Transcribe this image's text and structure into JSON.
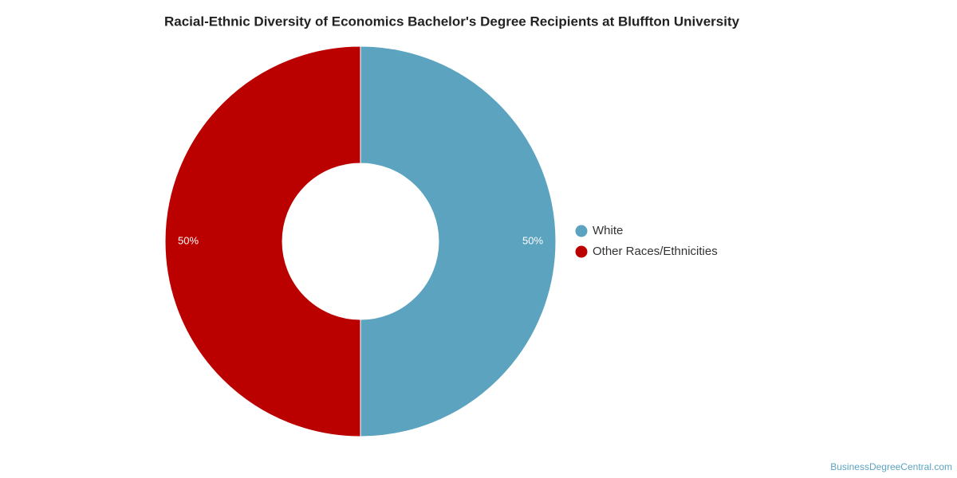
{
  "chart_data": {
    "type": "donut",
    "title": "Racial-Ethnic Diversity of Economics Bachelor's Degree Recipients at Bluffton University",
    "categories": [
      "White",
      "Other Races/Ethnicities"
    ],
    "values": [
      50,
      50
    ],
    "value_labels": [
      "50%",
      "50%"
    ],
    "colors": [
      "#5ba3bf",
      "#bb0000"
    ],
    "legend": "right"
  },
  "watermark": "BusinessDegreeCentral.com"
}
